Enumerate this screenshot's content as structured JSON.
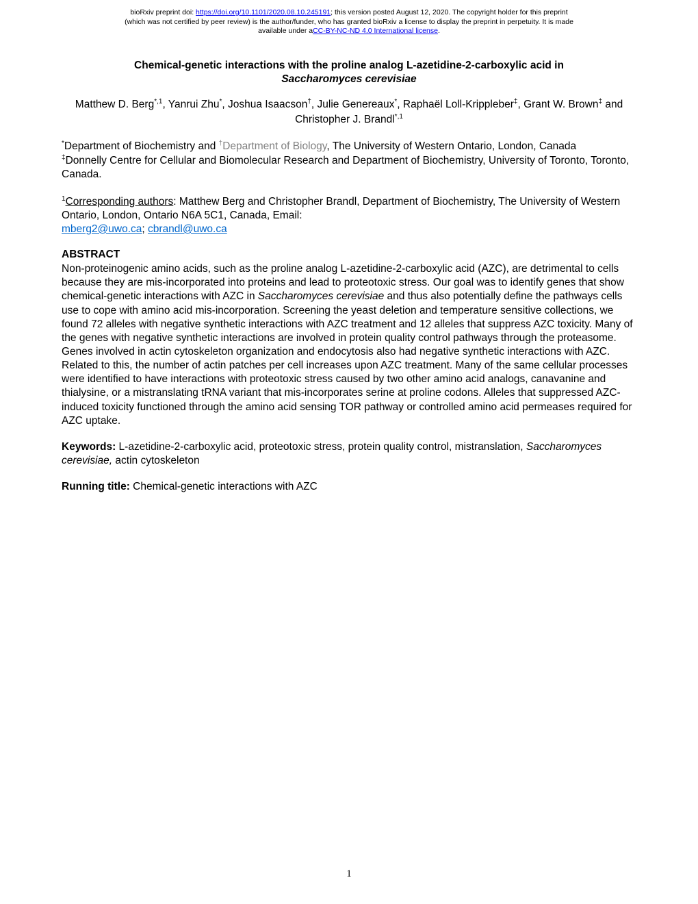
{
  "preprint": {
    "line1_prefix": "bioRxiv preprint doi: ",
    "doi_url": "https://doi.org/10.1101/2020.08.10.245191",
    "line1_suffix": "; this version posted August 12, 2020. The copyright holder for this preprint",
    "line2": "(which was not certified by peer review) is the author/funder, who has granted bioRxiv a license to display the preprint in perpetuity. It is made",
    "line3_prefix": "available under a",
    "cc_link": "CC-BY-NC-ND 4.0 International license",
    "line3_suffix": "."
  },
  "title": {
    "main": "Chemical-genetic interactions with the proline analog L-azetidine-2-carboxylic acid in",
    "italic": "Saccharomyces cerevisiae"
  },
  "authors": {
    "a1_name": "Matthew D. Berg",
    "a1_sup": "*,1",
    "a2_name": ", Yanrui Zhu",
    "a2_sup": "*",
    "a3_name": ", Joshua Isaacson",
    "a3_sup": "†",
    "a4_name": ", Julie Genereaux",
    "a4_sup": "*",
    "a5_name": ", Raphaël Loll-Krippleber",
    "a5_sup": "‡",
    "a6_name": ", Grant W. Brown",
    "a6_sup": "‡",
    "a7_name": " and Christopher J. Brandl",
    "a7_sup": "*,1"
  },
  "affiliations": {
    "star_sup": "*",
    "star_text": "Department of Biochemistry and ",
    "dagger_sup": "†",
    "dagger_text": "Department of Biology",
    "star_rest": ", The University of Western Ontario, London, Canada",
    "ddagger_sup": "‡",
    "ddagger_text": "Donnelly Centre for Cellular and Biomolecular Research and Department of Biochemistry, University of Toronto, Toronto, Canada."
  },
  "corresponding": {
    "sup": "1",
    "label": "Corresponding authors",
    "text": ": Matthew Berg and Christopher Brandl, Department of Biochemistry, The University of Western Ontario, London, Ontario N6A 5C1, Canada, Email: ",
    "email1": "mberg2@uwo.ca",
    "sep": "; ",
    "email2": "cbrandl@uwo.ca"
  },
  "abstract": {
    "heading": "ABSTRACT",
    "p1": "Non-proteinogenic amino acids, such as the proline analog L-azetidine-2-carboxylic acid (AZC), are detrimental to cells because they are mis-incorporated into proteins and lead to proteotoxic stress. Our goal was to identify genes that show chemical-genetic interactions with AZC in ",
    "p1_italic": "Saccharomyces cerevisiae",
    "p2": " and thus also potentially define the pathways cells use to cope with amino acid mis-incorporation. Screening the yeast deletion and temperature sensitive collections, we found 72 alleles with negative synthetic interactions with AZC treatment and 12 alleles that suppress AZC toxicity. Many of the genes with negative synthetic interactions are involved in protein quality control pathways through the proteasome. Genes involved in actin cytoskeleton organization and endocytosis also had negative synthetic interactions with AZC. Related to this, the number of actin patches per cell increases upon AZC treatment. Many of the same cellular processes were identified to have interactions with proteotoxic stress caused by two other amino acid analogs, canavanine and thialysine, or a mistranslating tRNA variant that mis-incorporates serine at proline codons. Alleles that suppressed AZC-induced toxicity functioned through the amino acid sensing TOR pathway or controlled amino acid permeases required for AZC uptake."
  },
  "keywords": {
    "label": "Keywords:",
    "p1": " L-azetidine-2-carboxylic acid, proteotoxic stress, protein quality control, mistranslation, ",
    "italic": "Saccharomyces cerevisiae,",
    "p2": " actin cytoskeleton"
  },
  "running_title": {
    "label": "Running title:",
    "text": " Chemical-genetic interactions with AZC"
  },
  "page_number": "1"
}
